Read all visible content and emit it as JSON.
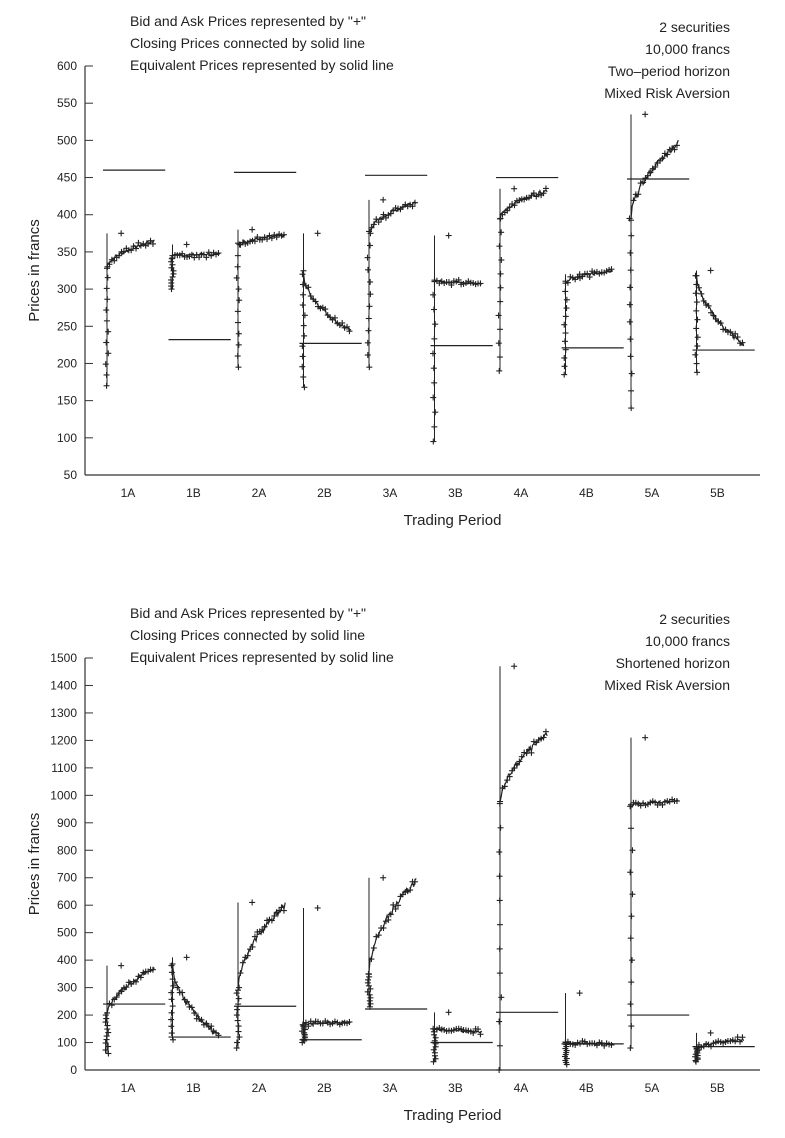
{
  "chart_data": [
    {
      "type": "scatter",
      "legend_notes": [
        "Bid and Ask Prices represented by \"+\"",
        "Closing Prices connected by solid line",
        "Equivalent Prices represented by solid line"
      ],
      "info_notes": [
        "2 securities",
        "10,000 francs",
        "Two–period horizon",
        "Mixed Risk Aversion"
      ],
      "xlabel": "Trading Period",
      "ylabel": "Prices in francs",
      "ylim": [
        50,
        600
      ],
      "yticks": [
        50,
        100,
        150,
        200,
        250,
        300,
        350,
        400,
        450,
        500,
        550,
        600
      ],
      "categories": [
        "1A",
        "1B",
        "2A",
        "2B",
        "3A",
        "3B",
        "4A",
        "4B",
        "5A",
        "5B"
      ],
      "periods": [
        {
          "label": "1A",
          "equivalent": 460,
          "closing_start": 330,
          "closing_end": 365,
          "low": 170,
          "high": 375
        },
        {
          "label": "1B",
          "equivalent": 232,
          "closing_start": 345,
          "closing_end": 347,
          "low": 300,
          "high": 360
        },
        {
          "label": "2A",
          "equivalent": 457,
          "closing_start": 360,
          "closing_end": 372,
          "low": 195,
          "high": 380
        },
        {
          "label": "2B",
          "equivalent": 227,
          "closing_start": 320,
          "closing_end": 243,
          "low": 168,
          "high": 375
        },
        {
          "label": "3A",
          "equivalent": 453,
          "closing_start": 375,
          "closing_end": 418,
          "low": 195,
          "high": 420
        },
        {
          "label": "3B",
          "equivalent": 224,
          "closing_start": 312,
          "closing_end": 307,
          "low": 95,
          "high": 372
        },
        {
          "label": "4A",
          "equivalent": 450,
          "closing_start": 395,
          "closing_end": 433,
          "low": 190,
          "high": 435
        },
        {
          "label": "4B",
          "equivalent": 221,
          "closing_start": 308,
          "closing_end": 325,
          "low": 185,
          "high": 320
        },
        {
          "label": "5A",
          "equivalent": 448,
          "closing_start": 395,
          "closing_end": 497,
          "low": 140,
          "high": 535
        },
        {
          "label": "5B",
          "equivalent": 218,
          "closing_start": 318,
          "closing_end": 225,
          "low": 188,
          "high": 325
        }
      ]
    },
    {
      "type": "scatter",
      "legend_notes": [
        "Bid and Ask Prices represented by \"+\"",
        "Closing Prices connected by solid line",
        "Equivalent Prices represented by solid line"
      ],
      "info_notes": [
        "2 securities",
        "10,000 francs",
        "Shortened horizon",
        "Mixed Risk Aversion"
      ],
      "xlabel": "Trading Period",
      "ylabel": "Prices in francs",
      "ylim": [
        0,
        1500
      ],
      "yticks": [
        0,
        100,
        200,
        300,
        400,
        500,
        600,
        700,
        800,
        900,
        1000,
        1100,
        1200,
        1300,
        1400,
        1500
      ],
      "categories": [
        "1A",
        "1B",
        "2A",
        "2B",
        "3A",
        "3B",
        "4A",
        "4B",
        "5A",
        "5B"
      ],
      "periods": [
        {
          "label": "1A",
          "equivalent": 240,
          "closing_start": 200,
          "closing_end": 370,
          "low": 60,
          "high": 380
        },
        {
          "label": "1B",
          "equivalent": 120,
          "closing_start": 380,
          "closing_end": 122,
          "low": 110,
          "high": 410
        },
        {
          "label": "2A",
          "equivalent": 232,
          "closing_start": 300,
          "closing_end": 600,
          "low": 80,
          "high": 610
        },
        {
          "label": "2B",
          "equivalent": 110,
          "closing_start": 165,
          "closing_end": 175,
          "low": 100,
          "high": 590
        },
        {
          "label": "3A",
          "equivalent": 222,
          "closing_start": 350,
          "closing_end": 690,
          "low": 230,
          "high": 700
        },
        {
          "label": "3B",
          "equivalent": 100,
          "closing_start": 150,
          "closing_end": 140,
          "low": 30,
          "high": 210
        },
        {
          "label": "4A",
          "equivalent": 210,
          "closing_start": 970,
          "closing_end": 1220,
          "low": 0,
          "high": 1470
        },
        {
          "label": "4B",
          "equivalent": 95,
          "closing_start": 100,
          "closing_end": 95,
          "low": 20,
          "high": 280
        },
        {
          "label": "5A",
          "equivalent": 200,
          "closing_start": 960,
          "closing_end": 980,
          "low": 80,
          "high": 1210
        },
        {
          "label": "5B",
          "equivalent": 85,
          "closing_start": 80,
          "closing_end": 110,
          "low": 30,
          "high": 135
        }
      ]
    }
  ]
}
